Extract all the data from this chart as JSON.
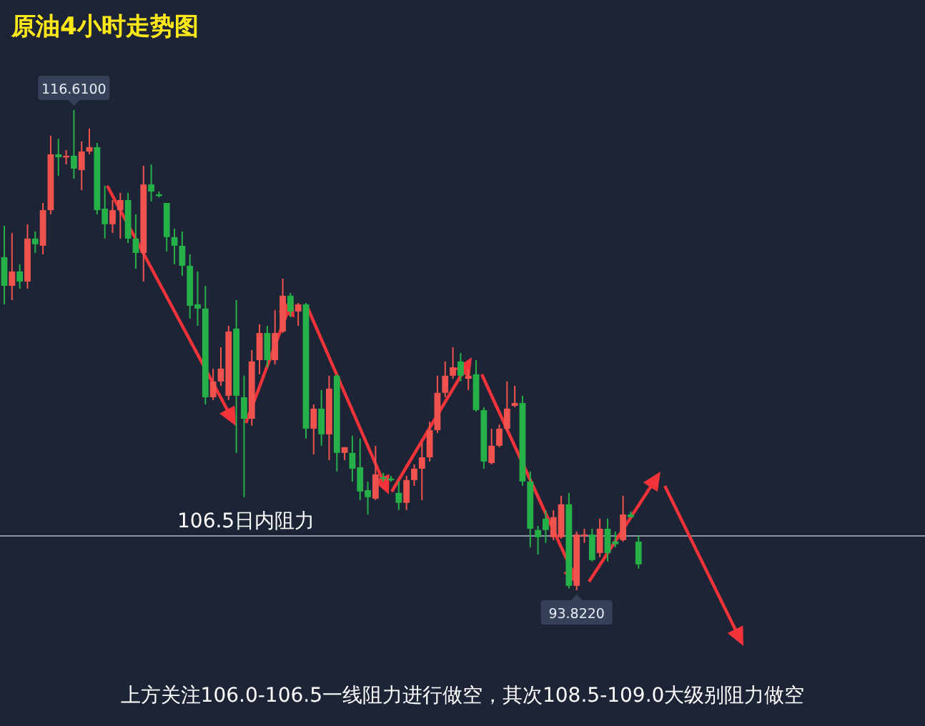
{
  "chart_data": {
    "type": "candlestick",
    "title": "原油4小时走势图",
    "categories": [
      null,
      null,
      null,
      null,
      null,
      null,
      null,
      null,
      null,
      null,
      null,
      null,
      null,
      null,
      null,
      null,
      null,
      null,
      null,
      null,
      null,
      null,
      null,
      null,
      null,
      null,
      null,
      null,
      null,
      null,
      null,
      null,
      null,
      null,
      null,
      null,
      null,
      null,
      null,
      null,
      null,
      null,
      null,
      null,
      null,
      null,
      null,
      null,
      null,
      null,
      null,
      null,
      null,
      null,
      null,
      null,
      null,
      null,
      null,
      null,
      null,
      null,
      null,
      null,
      null,
      null,
      null,
      null,
      null,
      null,
      null,
      null,
      null,
      null,
      null,
      null,
      null,
      null,
      null,
      null,
      null,
      null,
      null
    ],
    "ohlc": [
      [
        109.63,
        111.12,
        107.39,
        108.27
      ],
      [
        108.27,
        110.78,
        107.59,
        108.95
      ],
      [
        108.95,
        109.29,
        108.13,
        108.47
      ],
      [
        108.47,
        111.19,
        108.13,
        110.51
      ],
      [
        110.51,
        110.85,
        109.83,
        110.24
      ],
      [
        110.17,
        112.2,
        109.76,
        111.86
      ],
      [
        111.86,
        115.39,
        111.66,
        114.51
      ],
      [
        114.51,
        115.25,
        113.49,
        114.37
      ],
      [
        114.37,
        114.71,
        114.03,
        114.44
      ],
      [
        114.44,
        116.61,
        113.35,
        113.83
      ],
      [
        113.76,
        115.12,
        112.81,
        114.64
      ],
      [
        114.64,
        115.73,
        114.51,
        114.85
      ],
      [
        114.85,
        115.05,
        111.66,
        111.86
      ],
      [
        111.93,
        113.02,
        110.51,
        111.19
      ],
      [
        111.19,
        112.34,
        110.78,
        111.86
      ],
      [
        111.86,
        112.68,
        110.51,
        112.34
      ],
      [
        112.34,
        112.68,
        110.3,
        110.51
      ],
      [
        110.51,
        111.66,
        109.08,
        109.83
      ],
      [
        109.83,
        113.97,
        108.47,
        113.08
      ],
      [
        113.08,
        114.03,
        112.27,
        112.74
      ],
      [
        112.61,
        112.74,
        112.47,
        112.54
      ],
      [
        112.2,
        112.2,
        109.9,
        110.58
      ],
      [
        110.58,
        110.98,
        109.29,
        110.17
      ],
      [
        110.17,
        110.85,
        108.74,
        109.22
      ],
      [
        109.22,
        109.76,
        106.71,
        107.32
      ],
      [
        107.39,
        108.95,
        106.37,
        107.19
      ],
      [
        107.19,
        108.27,
        102.64,
        102.98
      ],
      [
        102.98,
        104.34,
        102.85,
        103.73
      ],
      [
        103.73,
        105.35,
        103.52,
        104.34
      ],
      [
        103.05,
        106.37,
        102.85,
        106.1
      ],
      [
        106.24,
        107.59,
        100.34,
        103.05
      ],
      [
        102.98,
        104,
        98.24,
        101.96
      ],
      [
        101.96,
        105.22,
        101.63,
        104.68
      ],
      [
        104.74,
        106.44,
        104.07,
        106.03
      ],
      [
        106.03,
        106.37,
        104.4,
        104.74
      ],
      [
        104.74,
        107.12,
        104.54,
        106.03
      ],
      [
        106.1,
        108.61,
        106.03,
        107.8
      ],
      [
        107.8,
        107.93,
        106.78,
        107.05
      ],
      [
        107.05,
        107.46,
        106.37,
        107.39
      ],
      [
        107.39,
        107.46,
        101.02,
        101.49
      ],
      [
        101.49,
        102.64,
        100.27,
        102.44
      ],
      [
        102.44,
        103.32,
        100.68,
        101.22
      ],
      [
        101.22,
        104,
        100,
        103.39
      ],
      [
        104,
        104.07,
        99.46,
        100.34
      ],
      [
        100.34,
        100.61,
        100,
        100.61
      ],
      [
        100.34,
        101.15,
        98.98,
        99.59
      ],
      [
        99.66,
        101.02,
        98.1,
        98.51
      ],
      [
        98.57,
        98.98,
        97.42,
        98.24
      ],
      [
        98.17,
        100.68,
        98.1,
        99.32
      ],
      [
        99.18,
        99.39,
        98.98,
        99.12
      ],
      [
        99.12,
        99.25,
        98.98,
        99.05
      ],
      [
        98.44,
        98.98,
        97.63,
        97.97
      ],
      [
        97.97,
        99.25,
        97.63,
        99.05
      ],
      [
        99.05,
        99.8,
        98.78,
        99.59
      ],
      [
        99.59,
        100.81,
        98.1,
        100.13
      ],
      [
        100.13,
        101.83,
        99.93,
        101.42
      ],
      [
        101.42,
        104,
        101.29,
        103.19
      ],
      [
        103.19,
        104.68,
        102.98,
        104
      ],
      [
        104,
        105.35,
        103.86,
        104.4
      ],
      [
        104.68,
        105.08,
        103.73,
        104
      ],
      [
        103.86,
        104.34,
        103.32,
        104
      ],
      [
        104.07,
        104.74,
        102.3,
        102.37
      ],
      [
        102.37,
        102.51,
        99.59,
        99.93
      ],
      [
        99.86,
        101.49,
        99.8,
        100.68
      ],
      [
        100.68,
        101.69,
        100.61,
        101.49
      ],
      [
        101.49,
        103.73,
        101.35,
        102.44
      ],
      [
        102.57,
        103.52,
        102.51,
        102.71
      ],
      [
        102.71,
        103.05,
        98.78,
        98.98
      ],
      [
        98.98,
        99.46,
        95.86,
        96.74
      ],
      [
        96.68,
        96.88,
        95.52,
        96.34
      ],
      [
        97.22,
        97.62,
        96.07,
        96.68
      ],
      [
        96.34,
        97.62,
        96.2,
        97.29
      ],
      [
        96.34,
        98.3,
        96.27,
        97.9
      ],
      [
        97.9,
        98.44,
        93.9,
        94.03
      ],
      [
        94.03,
        96.61,
        93.822,
        96.47
      ],
      [
        96.4,
        96.74,
        96.07,
        96.47
      ],
      [
        96.47,
        96.74,
        95.19,
        95.25
      ],
      [
        95.59,
        97.22,
        95.39,
        96.74
      ],
      [
        96.74,
        97.22,
        95.19,
        95.59
      ],
      [
        96.13,
        96.61,
        95.86,
        96.01
      ],
      [
        96.2,
        98.3,
        96.13,
        97.42
      ],
      [
        97.42,
        97.56,
        97.29,
        97.29
      ],
      [
        96.13,
        96.4,
        94.85,
        95.05
      ]
    ],
    "colors": [
      "#25b048",
      "#f0534e",
      "#25b048",
      "#f0534e",
      "#25b048",
      "#f0534e",
      "#f0534e",
      "#25b048",
      "#f0534e",
      "#25b048",
      "#f0534e",
      "#f0534e",
      "#25b048",
      "#25b048",
      "#f0534e",
      "#f0534e",
      "#25b048",
      "#25b048",
      "#f0534e",
      "#25b048",
      "#25b048",
      "#25b048",
      "#25b048",
      "#25b048",
      "#25b048",
      "#25b048",
      "#25b048",
      "#f0534e",
      "#f0534e",
      "#f0534e",
      "#25b048",
      "#25b048",
      "#f0534e",
      "#f0534e",
      "#25b048",
      "#f0534e",
      "#f0534e",
      "#25b048",
      "#f0534e",
      "#25b048",
      "#f0534e",
      "#25b048",
      "#f0534e",
      "#25b048",
      "#f0534e",
      "#25b048",
      "#25b048",
      "#25b048",
      "#f0534e",
      "#25b048",
      "#25b048",
      "#25b048",
      "#f0534e",
      "#f0534e",
      "#f0534e",
      "#f0534e",
      "#f0534e",
      "#f0534e",
      "#f0534e",
      "#25b048",
      "#f0534e",
      "#25b048",
      "#25b048",
      "#f0534e",
      "#f0534e",
      "#f0534e",
      "#f0534e",
      "#25b048",
      "#25b048",
      "#25b048",
      "#25b048",
      "#f0534e",
      "#f0534e",
      "#25b048",
      "#f0534e",
      "#f0534e",
      "#25b048",
      "#f0534e",
      "#25b048",
      "#25b048",
      "#f0534e",
      "#25b048",
      "#25b048"
    ],
    "ref_lines": [
      {
        "axis": "y",
        "value": 96.4,
        "color": "#8c95a8"
      }
    ],
    "annotations": [
      "106.5日内阻力",
      "上方关注106.0-106.5一线阻力进行做空，其次108.5-109.0大级别阻力做空",
      {
        "text": "116.6100",
        "y": 116.61
      },
      {
        "text": "93.8220",
        "y": 93.822
      }
    ]
  }
}
